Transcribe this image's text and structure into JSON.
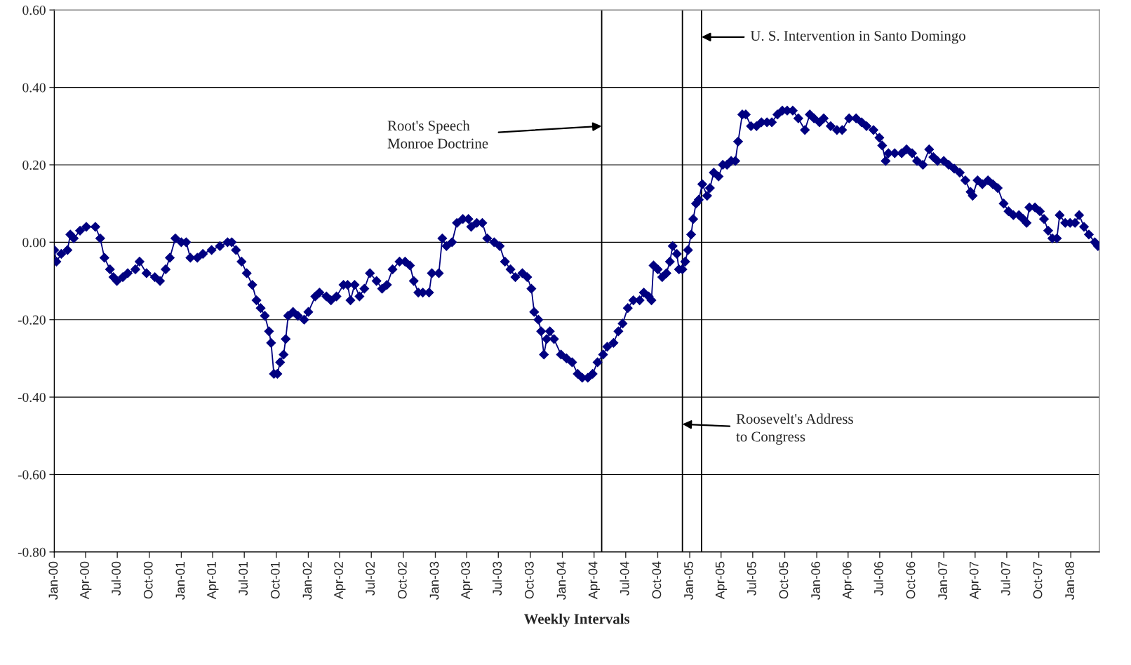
{
  "chart_data": {
    "type": "line",
    "xlabel": "Weekly Intervals",
    "x": [
      "1900-01-01",
      "1900-01-07",
      "1900-01-21",
      "1900-02-08",
      "1900-02-16",
      "1900-02-26",
      "1900-03-16",
      "1900-04-03",
      "1900-04-29",
      "1900-05-13",
      "1900-05-25",
      "1900-06-10",
      "1900-06-20",
      "1900-06-30",
      "1900-07-17",
      "1900-07-31",
      "1900-08-22",
      "1900-09-03",
      "1900-09-23",
      "1900-10-17",
      "1900-11-01",
      "1900-11-17",
      "1900-11-29",
      "1900-12-15",
      "1901-01-01",
      "1901-01-15",
      "1901-01-27",
      "1901-02-16",
      "1901-03-04",
      "1901-03-29",
      "1901-04-22",
      "1901-05-14",
      "1901-05-26",
      "1901-06-07",
      "1901-06-23",
      "1901-07-08",
      "1901-07-24",
      "1901-08-05",
      "1901-08-17",
      "1901-08-29",
      "1901-09-10",
      "1901-09-16",
      "1901-09-24",
      "1901-10-04",
      "1901-10-12",
      "1901-10-22",
      "1901-10-28",
      "1901-11-04",
      "1901-11-18",
      "1901-12-02",
      "1901-12-20",
      "1902-01-01",
      "1902-01-21",
      "1902-02-02",
      "1902-02-22",
      "1902-03-07",
      "1902-03-23",
      "1902-04-12",
      "1902-04-24",
      "1902-05-02",
      "1902-05-14",
      "1902-05-28",
      "1902-06-11",
      "1902-06-27",
      "1902-07-16",
      "1902-08-01",
      "1902-08-15",
      "1902-08-31",
      "1902-09-20",
      "1902-10-06",
      "1902-10-20",
      "1902-10-31",
      "1902-11-13",
      "1902-11-26",
      "1902-12-14",
      "1902-12-22",
      "1903-01-11",
      "1903-01-21",
      "1903-02-02",
      "1903-02-18",
      "1903-03-04",
      "1903-03-21",
      "1903-04-06",
      "1903-04-14",
      "1903-04-30",
      "1903-05-16",
      "1903-05-30",
      "1903-06-19",
      "1903-07-05",
      "1903-07-20",
      "1903-08-05",
      "1903-08-19",
      "1903-09-08",
      "1903-09-22",
      "1903-10-04",
      "1903-10-12",
      "1903-10-24",
      "1903-11-01",
      "1903-11-09",
      "1903-11-17",
      "1903-11-26",
      "1903-12-08",
      "1903-12-28",
      "1904-01-13",
      "1904-01-29",
      "1904-02-14",
      "1904-02-27",
      "1904-03-14",
      "1904-03-28",
      "1904-04-11",
      "1904-04-27",
      "1904-05-09",
      "1904-05-27",
      "1904-06-10",
      "1904-06-22",
      "1904-07-07",
      "1904-07-23",
      "1904-08-10",
      "1904-08-22",
      "1904-09-05",
      "1904-09-13",
      "1904-09-19",
      "1904-10-01",
      "1904-10-14",
      "1904-10-26",
      "1904-11-05",
      "1904-11-13",
      "1904-11-25",
      "1904-12-01",
      "1904-12-11",
      "1904-12-19",
      "1904-12-27",
      "1905-01-05",
      "1905-01-11",
      "1905-01-19",
      "1905-01-27",
      "1905-02-06",
      "1905-02-20",
      "1905-02-28",
      "1905-03-11",
      "1905-03-25",
      "1905-04-06",
      "1905-04-18",
      "1905-04-30",
      "1905-05-12",
      "1905-05-20",
      "1905-06-01",
      "1905-06-11",
      "1905-06-26",
      "1905-07-12",
      "1905-07-26",
      "1905-08-11",
      "1905-08-25",
      "1905-09-10",
      "1905-09-24",
      "1905-10-08",
      "1905-10-24",
      "1905-11-09",
      "1905-11-28",
      "1905-12-12",
      "1905-12-24",
      "1906-01-09",
      "1906-01-21",
      "1906-02-10",
      "1906-02-28",
      "1906-03-15",
      "1906-04-04",
      "1906-04-24",
      "1906-05-10",
      "1906-05-24",
      "1906-06-13",
      "1906-06-30",
      "1906-07-08",
      "1906-07-18",
      "1906-07-26",
      "1906-08-13",
      "1906-09-02",
      "1906-09-16",
      "1906-10-02",
      "1906-10-16",
      "1906-11-02",
      "1906-11-20",
      "1906-12-02",
      "1906-12-14",
      "1907-01-01",
      "1907-01-15",
      "1907-01-31",
      "1907-02-16",
      "1907-03-04",
      "1907-03-19",
      "1907-03-25",
      "1907-04-08",
      "1907-04-22",
      "1907-05-08",
      "1907-05-22",
      "1907-06-05",
      "1907-06-22",
      "1907-07-06",
      "1907-07-20",
      "1907-08-05",
      "1907-08-17",
      "1907-08-27",
      "1907-09-04",
      "1907-09-20",
      "1907-10-04",
      "1907-10-16",
      "1907-10-28",
      "1907-11-09",
      "1907-11-22",
      "1907-11-30",
      "1907-12-16",
      "1907-12-30",
      "1908-01-13",
      "1908-01-25",
      "1908-02-08",
      "1908-02-22",
      "1908-03-10",
      "1908-03-19"
    ],
    "series": [
      {
        "color": "#000080",
        "values": [
          -0.02,
          -0.05,
          -0.03,
          -0.02,
          0.02,
          0.01,
          0.03,
          0.04,
          0.04,
          0.01,
          -0.04,
          -0.07,
          -0.09,
          -0.1,
          -0.09,
          -0.08,
          -0.07,
          -0.05,
          -0.08,
          -0.09,
          -0.1,
          -0.07,
          -0.04,
          0.01,
          0.0,
          0.0,
          -0.04,
          -0.04,
          -0.03,
          -0.02,
          -0.01,
          0.0,
          0.0,
          -0.02,
          -0.05,
          -0.08,
          -0.11,
          -0.15,
          -0.17,
          -0.19,
          -0.23,
          -0.26,
          -0.34,
          -0.34,
          -0.31,
          -0.29,
          -0.25,
          -0.19,
          -0.18,
          -0.19,
          -0.2,
          -0.18,
          -0.14,
          -0.13,
          -0.14,
          -0.15,
          -0.14,
          -0.11,
          -0.11,
          -0.15,
          -0.11,
          -0.14,
          -0.12,
          -0.08,
          -0.1,
          -0.12,
          -0.11,
          -0.07,
          -0.05,
          -0.05,
          -0.06,
          -0.1,
          -0.13,
          -0.13,
          -0.13,
          -0.08,
          -0.08,
          0.01,
          -0.01,
          0.0,
          0.05,
          0.06,
          0.06,
          0.04,
          0.05,
          0.05,
          0.01,
          0.0,
          -0.01,
          -0.05,
          -0.07,
          -0.09,
          -0.08,
          -0.09,
          -0.12,
          -0.18,
          -0.2,
          -0.23,
          -0.29,
          -0.25,
          -0.23,
          -0.25,
          -0.29,
          -0.3,
          -0.31,
          -0.34,
          -0.35,
          -0.35,
          -0.34,
          -0.31,
          -0.29,
          -0.27,
          -0.26,
          -0.23,
          -0.21,
          -0.17,
          -0.15,
          -0.15,
          -0.13,
          -0.14,
          -0.15,
          -0.06,
          -0.07,
          -0.09,
          -0.08,
          -0.05,
          -0.01,
          -0.03,
          -0.07,
          -0.07,
          -0.05,
          -0.02,
          0.02,
          0.06,
          0.1,
          0.11,
          0.15,
          0.12,
          0.14,
          0.18,
          0.17,
          0.2,
          0.2,
          0.21,
          0.21,
          0.26,
          0.33,
          0.33,
          0.3,
          0.3,
          0.31,
          0.31,
          0.31,
          0.33,
          0.34,
          0.34,
          0.34,
          0.32,
          0.29,
          0.33,
          0.32,
          0.31,
          0.32,
          0.3,
          0.29,
          0.29,
          0.32,
          0.32,
          0.31,
          0.3,
          0.29,
          0.27,
          0.25,
          0.21,
          0.23,
          0.23,
          0.23,
          0.24,
          0.23,
          0.21,
          0.2,
          0.24,
          0.22,
          0.21,
          0.21,
          0.2,
          0.19,
          0.18,
          0.16,
          0.13,
          0.12,
          0.16,
          0.15,
          0.16,
          0.15,
          0.14,
          0.1,
          0.08,
          0.07,
          0.07,
          0.06,
          0.05,
          0.09,
          0.09,
          0.08,
          0.06,
          0.03,
          0.01,
          0.01,
          0.07,
          0.05,
          0.05,
          0.05,
          0.07,
          0.04,
          0.02,
          0.0,
          -0.01
        ]
      }
    ],
    "marker": "diamond",
    "line_style": "solid",
    "grid": "y",
    "xlim": [
      "1900-01-01",
      "1908-03-23"
    ],
    "xticks": [
      {
        "value": "1900-01-01",
        "label": "Jan-00"
      },
      {
        "value": "1900-04-01",
        "label": "Apr-00"
      },
      {
        "value": "1900-07-01",
        "label": "Jul-00"
      },
      {
        "value": "1900-10-01",
        "label": "Oct-00"
      },
      {
        "value": "1901-01-01",
        "label": "Jan-01"
      },
      {
        "value": "1901-04-01",
        "label": "Apr-01"
      },
      {
        "value": "1901-07-01",
        "label": "Jul-01"
      },
      {
        "value": "1901-10-01",
        "label": "Oct-01"
      },
      {
        "value": "1902-01-01",
        "label": "Jan-02"
      },
      {
        "value": "1902-04-01",
        "label": "Apr-02"
      },
      {
        "value": "1902-07-01",
        "label": "Jul-02"
      },
      {
        "value": "1902-10-01",
        "label": "Oct-02"
      },
      {
        "value": "1903-01-01",
        "label": "Jan-03"
      },
      {
        "value": "1903-04-01",
        "label": "Apr-03"
      },
      {
        "value": "1903-07-01",
        "label": "Jul-03"
      },
      {
        "value": "1903-10-01",
        "label": "Oct-03"
      },
      {
        "value": "1904-01-01",
        "label": "Jan-04"
      },
      {
        "value": "1904-04-01",
        "label": "Apr-04"
      },
      {
        "value": "1904-07-01",
        "label": "Jul-04"
      },
      {
        "value": "1904-10-01",
        "label": "Oct-04"
      },
      {
        "value": "1905-01-01",
        "label": "Jan-05"
      },
      {
        "value": "1905-04-01",
        "label": "Apr-05"
      },
      {
        "value": "1905-07-01",
        "label": "Jul-05"
      },
      {
        "value": "1905-10-01",
        "label": "Oct-05"
      },
      {
        "value": "1906-01-01",
        "label": "Jan-06"
      },
      {
        "value": "1906-04-01",
        "label": "Apr-06"
      },
      {
        "value": "1906-07-01",
        "label": "Jul-06"
      },
      {
        "value": "1906-10-01",
        "label": "Oct-06"
      },
      {
        "value": "1907-01-01",
        "label": "Jan-07"
      },
      {
        "value": "1907-04-01",
        "label": "Apr-07"
      },
      {
        "value": "1907-07-01",
        "label": "Jul-07"
      },
      {
        "value": "1907-10-01",
        "label": "Oct-07"
      },
      {
        "value": "1908-01-01",
        "label": "Jan-08"
      }
    ],
    "ylim": [
      -0.8,
      0.6
    ],
    "yticks": [
      {
        "value": -0.8,
        "label": "-0.80"
      },
      {
        "value": -0.6,
        "label": "-0.60"
      },
      {
        "value": -0.4,
        "label": "-0.40"
      },
      {
        "value": -0.2,
        "label": "-0.20"
      },
      {
        "value": 0,
        "label": "0.00"
      },
      {
        "value": 0.2,
        "label": "0.20"
      },
      {
        "value": 0.4,
        "label": "0.40"
      },
      {
        "value": 0.6,
        "label": "0.60"
      }
    ],
    "ref_lines": [
      {
        "axis": "x",
        "value": "1904-04-23",
        "color": "#000000"
      },
      {
        "axis": "x",
        "value": "1904-12-11",
        "color": "#000000"
      },
      {
        "axis": "x",
        "value": "1905-02-04",
        "color": "#000000"
      }
    ],
    "annotations": [
      {
        "text": "Root's Speech\nMonroe Doctrine",
        "x": "1904-04-23",
        "y": 0.3
      },
      {
        "text": "U. S. Intervention in Santo Domingo",
        "x": "1905-02-04",
        "y": 0.53
      },
      {
        "text": "Roosevelt's Address\nto Congress",
        "x": "1904-12-11",
        "y": -0.47
      }
    ]
  }
}
